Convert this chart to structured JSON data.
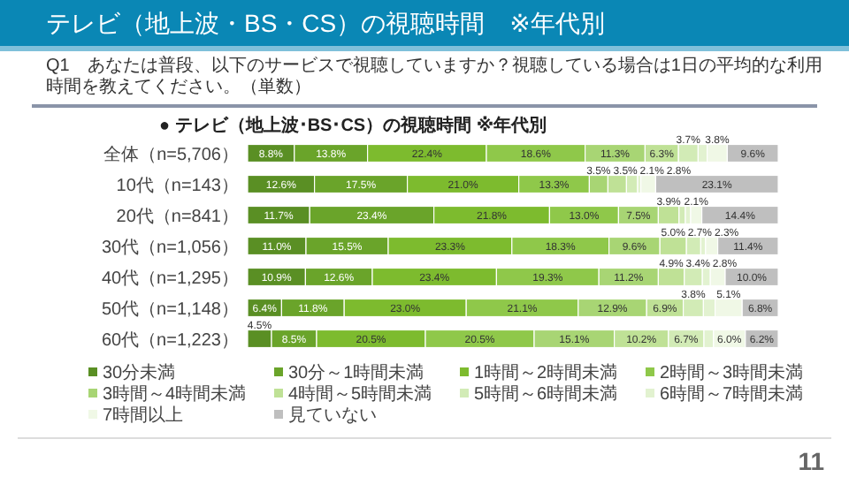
{
  "chart_data": {
    "type": "bar",
    "orientation": "horizontal",
    "stacked": true,
    "title": "テレビ（地上波・BS・CS）の視聴時間　※年代別",
    "subtitle": "Q1　あなたは普段、以下のサービスで視聴していますか？視聴している場合は1日の平均的な利用時間を教えてください。（単数）",
    "annotations": [
      "● テレビ（地上波･BS･CS）の視聴時間 ※年代別",
      "11"
    ],
    "categories": [
      "全体（n=5,706）",
      "10代（n=143）",
      "20代（n=841）",
      "30代（n=1,056）",
      "40代（n=1,295）",
      "50代（n=1,148）",
      "60代（n=1,223）"
    ],
    "xlim": [
      0,
      100
    ],
    "tick_labels": "y",
    "legend": "bottom",
    "series": [
      {
        "name": "30分未満",
        "color": "#5a8f24",
        "values": [
          8.8,
          12.6,
          11.7,
          11.0,
          10.9,
          6.4,
          4.5
        ],
        "value_labels": [
          "8.8%",
          "12.6%",
          "11.7%",
          "11.0%",
          "10.9%",
          "6.4%",
          "4.5%"
        ]
      },
      {
        "name": "30分～1時間未満",
        "color": "#6aa42a",
        "values": [
          13.8,
          17.5,
          23.4,
          15.5,
          12.6,
          11.8,
          8.5
        ],
        "value_labels": [
          "13.8%",
          "17.5%",
          "23.4%",
          "15.5%",
          "12.6%",
          "11.8%",
          "8.5%"
        ]
      },
      {
        "name": "1時間～2時間未満",
        "color": "#7dbb2e",
        "values": [
          22.4,
          21.0,
          21.8,
          23.3,
          23.4,
          23.0,
          20.5
        ],
        "value_labels": [
          "22.4%",
          "21.0%",
          "21.8%",
          "23.3%",
          "23.4%",
          "23.0%",
          "20.5%"
        ]
      },
      {
        "name": "2時間～3時間未満",
        "color": "#8fc84a",
        "values": [
          18.6,
          13.3,
          13.0,
          18.3,
          19.3,
          21.1,
          20.5
        ],
        "value_labels": [
          "18.6%",
          "13.3%",
          "13.0%",
          "18.3%",
          "19.3%",
          "21.1%",
          "20.5%"
        ]
      },
      {
        "name": "3時間～4時間未満",
        "color": "#a8d574",
        "values": [
          11.3,
          3.5,
          7.5,
          9.6,
          11.2,
          12.9,
          15.1
        ],
        "value_labels": [
          "11.3%",
          "3.5%",
          "7.5%",
          "9.6%",
          "11.2%",
          "12.9%",
          "15.1%"
        ]
      },
      {
        "name": "4時間～5時間未満",
        "color": "#bfe196",
        "values": [
          6.3,
          3.5,
          3.9,
          5.0,
          4.9,
          6.9,
          10.2
        ],
        "value_labels": [
          "6.3%",
          "3.5%",
          "3.9%",
          "5.0%",
          "4.9%",
          "6.9%",
          "10.2%"
        ]
      },
      {
        "name": "5時間～6時間未満",
        "color": "#d2ebb6",
        "values": [
          3.7,
          2.1,
          1.2,
          2.7,
          3.4,
          3.8,
          6.7
        ],
        "value_labels": [
          "3.7%",
          "2.1%",
          null,
          "2.7%",
          "3.4%",
          "3.8%",
          "6.7%"
        ]
      },
      {
        "name": "6時間～7時間未満",
        "color": "#e2f2d0",
        "values": [
          1.7,
          0.6,
          1.0,
          0.9,
          1.5,
          2.2,
          1.8
        ],
        "value_labels": [
          null,
          null,
          null,
          null,
          null,
          null,
          null
        ]
      },
      {
        "name": "7時間以上",
        "color": "#f0f8e6",
        "values": [
          3.8,
          2.8,
          2.1,
          2.3,
          2.8,
          5.1,
          6.0
        ],
        "value_labels": [
          "3.8%",
          "2.8%",
          "2.1%",
          "2.3%",
          "2.8%",
          "5.1%",
          "6.0%"
        ]
      },
      {
        "name": "見ていない",
        "color": "#bfbfbf",
        "values": [
          9.6,
          23.1,
          14.4,
          11.4,
          10.0,
          6.8,
          6.2
        ],
        "value_labels": [
          "9.6%",
          "23.1%",
          "14.4%",
          "11.4%",
          "10.0%",
          "6.8%",
          "6.2%"
        ]
      }
    ]
  }
}
